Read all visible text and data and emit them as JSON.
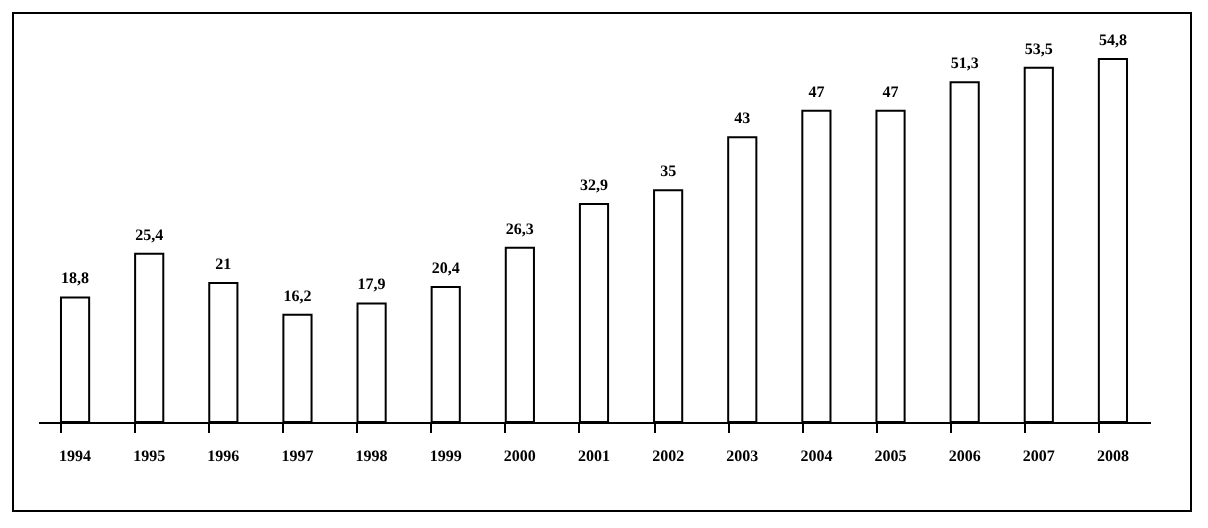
{
  "chart_data": {
    "type": "bar",
    "categories": [
      "1994",
      "1995",
      "1996",
      "1997",
      "1998",
      "1999",
      "2000",
      "2001",
      "2002",
      "2003",
      "2004",
      "2005",
      "2006",
      "2007",
      "2008"
    ],
    "values": [
      18.8,
      25.4,
      21,
      16.2,
      17.9,
      20.4,
      26.3,
      32.9,
      35,
      43,
      47,
      47,
      51.3,
      53.5,
      54.8
    ],
    "value_labels": [
      "18,8",
      "25,4",
      "21",
      "16,2",
      "17,9",
      "20,4",
      "26,3",
      "32,9",
      "35",
      "43",
      "47",
      "47",
      "51,3",
      "53,5",
      "54,8"
    ],
    "color": "#ffffff",
    "grid": false
  }
}
